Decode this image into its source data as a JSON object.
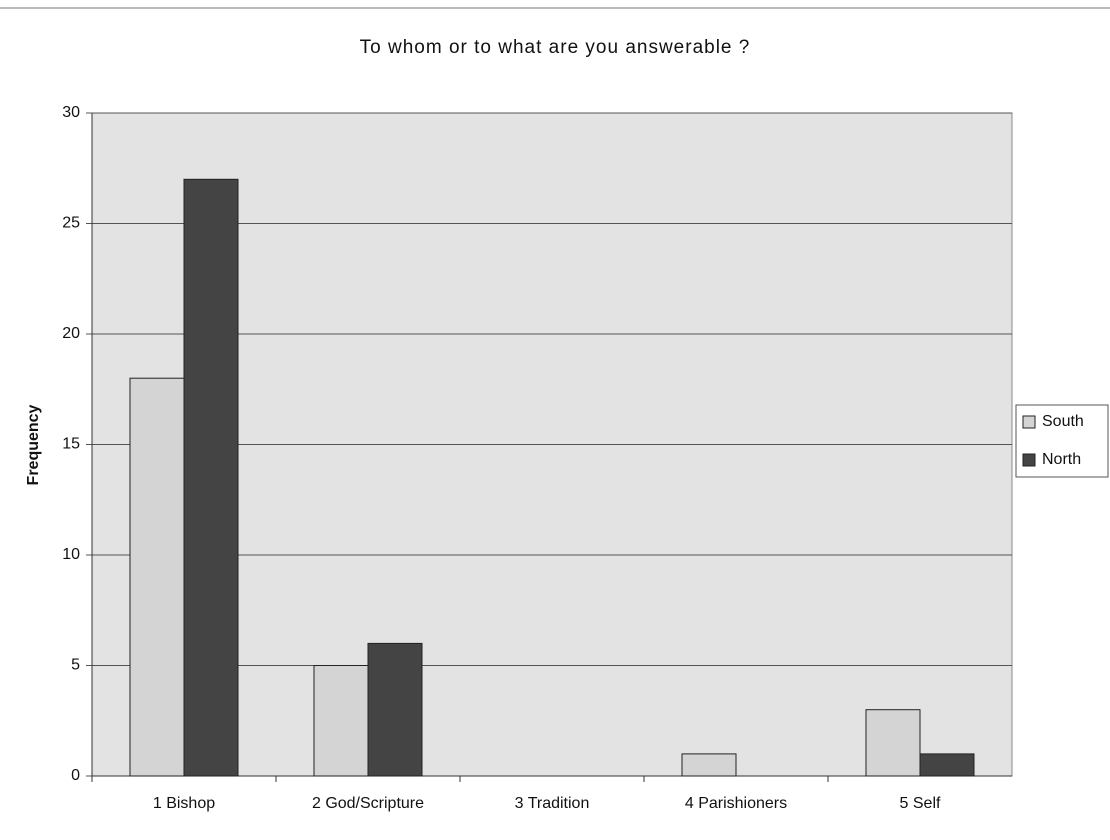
{
  "chart_data": {
    "type": "bar",
    "title": "To whom or to what are you answerable ?",
    "y_label": "Frequency",
    "categories": [
      "1 Bishop",
      "2 God/Scripture",
      "3 Tradition",
      "4 Parishioners",
      "5 Self"
    ],
    "series": [
      {
        "name": "South",
        "color": "#d4d4d4",
        "values": [
          18,
          5,
          0,
          1,
          3
        ]
      },
      {
        "name": "North",
        "color": "#444444",
        "values": [
          27,
          6,
          0,
          0,
          1
        ]
      }
    ],
    "ylim": [
      0,
      30
    ],
    "yticks": [
      0,
      5,
      10,
      15,
      20,
      25,
      30
    ],
    "grid": true,
    "legend": "right"
  }
}
